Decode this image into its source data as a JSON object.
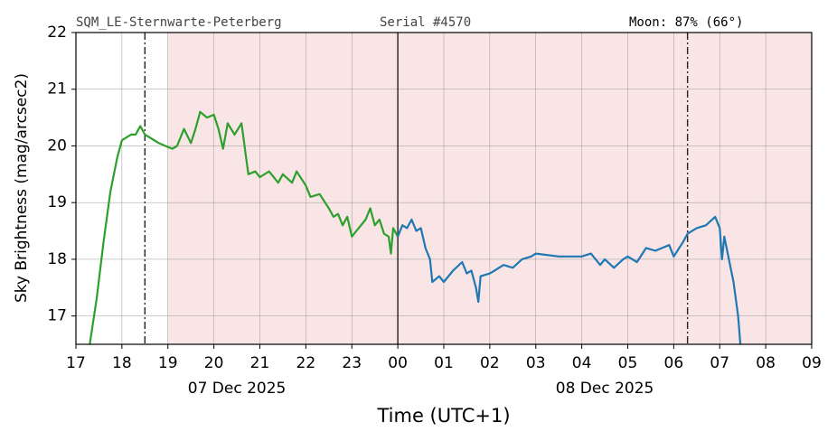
{
  "chart_data": {
    "type": "line",
    "header": {
      "station": "SQM_LE-Sternwarte-Peterberg",
      "serial": "Serial #4570",
      "moon": "Moon: 87% (66°)"
    },
    "xlabel": "Time (UTC+1)",
    "ylabel": "Sky Brightness (mag/arcsec2)",
    "date_labels": [
      "07 Dec 2025",
      "08 Dec 2025"
    ],
    "xlim": [
      17,
      33
    ],
    "ylim": [
      16.5,
      22
    ],
    "xticks": [
      17,
      18,
      19,
      20,
      21,
      22,
      23,
      {
        "value": 24,
        "label": "00"
      },
      {
        "value": 25,
        "label": "01"
      },
      {
        "value": 26,
        "label": "02"
      },
      {
        "value": 27,
        "label": "03"
      },
      {
        "value": 28,
        "label": "04"
      },
      {
        "value": 29,
        "label": "05"
      },
      {
        "value": 30,
        "label": "06"
      },
      {
        "value": 31,
        "label": "07"
      },
      {
        "value": 32,
        "label": "08"
      },
      {
        "value": 33,
        "label": "09"
      }
    ],
    "yticks": [
      17,
      18,
      19,
      20,
      21,
      22
    ],
    "grid": true,
    "shaded_region": {
      "range": [
        19.0,
        33
      ],
      "color": "#f9e5e5"
    },
    "vlines": [
      {
        "x": 18.5,
        "style": "dashdot"
      },
      {
        "x": 24,
        "style": "solid"
      },
      {
        "x": 30.3,
        "style": "dashdot"
      }
    ],
    "series": [
      {
        "color": "#2ca02c",
        "x": [
          17.3,
          17.45,
          17.6,
          17.75,
          17.9,
          18.0,
          18.2,
          18.3,
          18.4,
          18.5,
          18.6,
          18.8,
          19.0,
          19.1,
          19.2,
          19.35,
          19.5,
          19.6,
          19.7,
          19.85,
          20.0,
          20.1,
          20.2,
          20.3,
          20.45,
          20.6,
          20.7,
          20.75,
          20.9,
          21.0,
          21.2,
          21.4,
          21.5,
          21.7,
          21.8,
          22.0,
          22.1,
          22.3,
          22.5,
          22.6,
          22.7,
          22.8,
          22.9,
          23.0,
          23.1,
          23.3,
          23.4,
          23.5,
          23.6,
          23.7,
          23.8,
          23.85,
          23.9,
          24.0
        ],
        "values": [
          16.5,
          17.3,
          18.3,
          19.2,
          19.8,
          20.1,
          20.2,
          20.2,
          20.35,
          20.2,
          20.15,
          20.05,
          19.98,
          19.95,
          20.0,
          20.3,
          20.05,
          20.3,
          20.6,
          20.5,
          20.55,
          20.3,
          19.95,
          20.4,
          20.2,
          20.4,
          19.8,
          19.5,
          19.55,
          19.45,
          19.55,
          19.35,
          19.5,
          19.35,
          19.55,
          19.3,
          19.1,
          19.15,
          18.9,
          18.75,
          18.8,
          18.6,
          18.75,
          18.4,
          18.5,
          18.7,
          18.9,
          18.6,
          18.7,
          18.45,
          18.4,
          18.1,
          18.55,
          18.4
        ]
      },
      {
        "color": "#1f77b4",
        "x": [
          24.0,
          24.1,
          24.2,
          24.3,
          24.4,
          24.5,
          24.6,
          24.7,
          24.75,
          24.9,
          25.0,
          25.2,
          25.4,
          25.5,
          25.6,
          25.7,
          25.75,
          25.8,
          26.0,
          26.1,
          26.3,
          26.5,
          26.7,
          26.9,
          27.0,
          27.5,
          28.0,
          28.2,
          28.4,
          28.5,
          28.7,
          28.9,
          29.0,
          29.2,
          29.4,
          29.6,
          29.9,
          30.0,
          30.2,
          30.3,
          30.5,
          30.7,
          30.9,
          31.0,
          31.05,
          31.1,
          31.2,
          31.3,
          31.4,
          31.45
        ],
        "values": [
          18.4,
          18.6,
          18.55,
          18.7,
          18.5,
          18.55,
          18.2,
          18.0,
          17.6,
          17.7,
          17.6,
          17.8,
          17.95,
          17.75,
          17.8,
          17.5,
          17.25,
          17.7,
          17.75,
          17.8,
          17.9,
          17.85,
          18.0,
          18.05,
          18.1,
          18.05,
          18.05,
          18.1,
          17.9,
          18.0,
          17.85,
          18.0,
          18.05,
          17.95,
          18.2,
          18.15,
          18.25,
          18.05,
          18.3,
          18.45,
          18.55,
          18.6,
          18.75,
          18.55,
          18.0,
          18.4,
          18.0,
          17.6,
          17.0,
          16.5
        ]
      }
    ]
  }
}
